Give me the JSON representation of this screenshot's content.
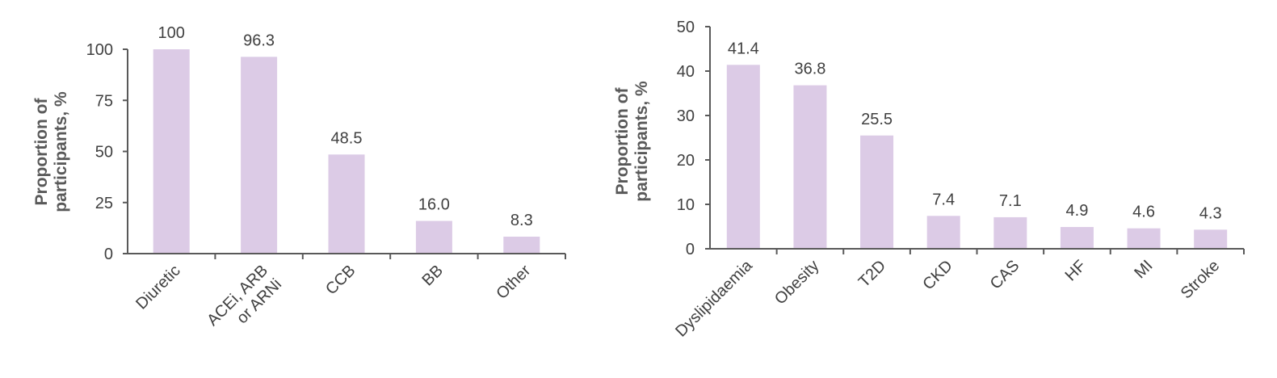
{
  "chart_data": [
    {
      "type": "bar",
      "categories": [
        [
          "Diuretic"
        ],
        [
          "ACEi, ARB",
          "or ARNi"
        ],
        [
          "CCB"
        ],
        [
          "BB"
        ],
        [
          "Other"
        ]
      ],
      "values": [
        100,
        96.3,
        48.5,
        16.0,
        8.3
      ],
      "value_labels": [
        "100",
        "96.3",
        "48.5",
        "16.0",
        "8.3"
      ],
      "ylabel": [
        "Proportion of",
        "participants, %"
      ],
      "yticks": [
        0,
        25,
        50,
        75,
        100
      ],
      "ylim": [
        0,
        100
      ],
      "bar_color": "#dccbe6",
      "grid": false,
      "legend": "none"
    },
    {
      "type": "bar",
      "categories": [
        [
          "Dyslipidaemia"
        ],
        [
          "Obesity"
        ],
        [
          "T2D"
        ],
        [
          "CKD"
        ],
        [
          "CAS"
        ],
        [
          "HF"
        ],
        [
          "MI"
        ],
        [
          "Stroke"
        ]
      ],
      "values": [
        41.4,
        36.8,
        25.5,
        7.4,
        7.1,
        4.9,
        4.6,
        4.3
      ],
      "value_labels": [
        "41.4",
        "36.8",
        "25.5",
        "7.4",
        "7.1",
        "4.9",
        "4.6",
        "4.3"
      ],
      "ylabel": [
        "Proportion of",
        "participants, %"
      ],
      "yticks": [
        0,
        10,
        20,
        30,
        40,
        50
      ],
      "ylim": [
        0,
        50
      ],
      "bar_color": "#dccbe6",
      "grid": false,
      "legend": "none"
    }
  ]
}
